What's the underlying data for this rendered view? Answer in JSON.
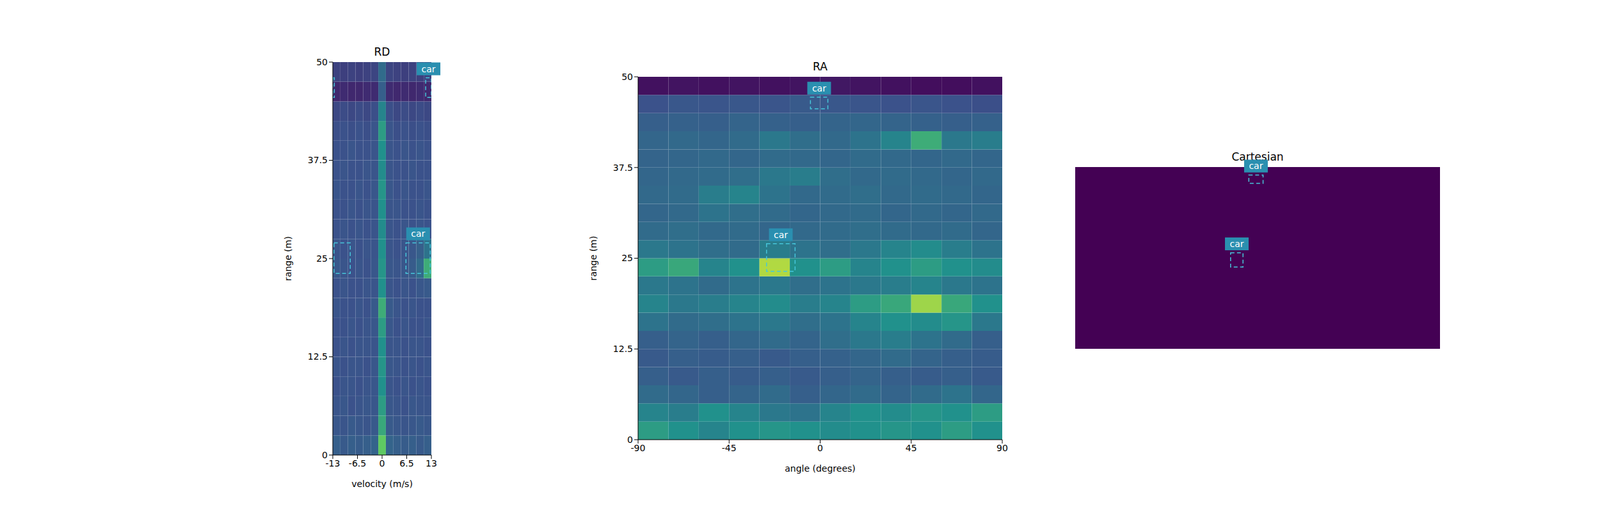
{
  "chart_data": [
    {
      "type": "heatmap",
      "title": "RD",
      "x_label": "velocity (m/s)",
      "y_label": "range (m)",
      "xlim": [
        -13,
        13
      ],
      "xticks": [
        -13,
        -6.5,
        0,
        6.5,
        13
      ],
      "ylim": [
        0,
        50
      ],
      "yticks": [
        0,
        12.5,
        25,
        37.5,
        50
      ],
      "zlim": [
        0,
        1
      ],
      "cells": [
        [
          0.3,
          0.28,
          0.3,
          0.29,
          0.3,
          0.32,
          0.75,
          0.32,
          0.3,
          0.29,
          0.3,
          0.28,
          0.3
        ],
        [
          0.27,
          0.26,
          0.28,
          0.27,
          0.26,
          0.28,
          0.6,
          0.28,
          0.27,
          0.26,
          0.27,
          0.28,
          0.27
        ],
        [
          0.26,
          0.27,
          0.25,
          0.26,
          0.27,
          0.27,
          0.55,
          0.27,
          0.26,
          0.25,
          0.27,
          0.26,
          0.26
        ],
        [
          0.25,
          0.26,
          0.26,
          0.25,
          0.26,
          0.27,
          0.5,
          0.26,
          0.25,
          0.26,
          0.25,
          0.26,
          0.25
        ],
        [
          0.26,
          0.25,
          0.26,
          0.26,
          0.25,
          0.27,
          0.52,
          0.27,
          0.26,
          0.25,
          0.26,
          0.25,
          0.26
        ],
        [
          0.25,
          0.26,
          0.25,
          0.26,
          0.26,
          0.26,
          0.5,
          0.26,
          0.26,
          0.25,
          0.26,
          0.26,
          0.25
        ],
        [
          0.25,
          0.25,
          0.26,
          0.25,
          0.26,
          0.27,
          0.55,
          0.27,
          0.25,
          0.26,
          0.25,
          0.25,
          0.26
        ],
        [
          0.26,
          0.25,
          0.25,
          0.26,
          0.25,
          0.28,
          0.62,
          0.28,
          0.26,
          0.25,
          0.26,
          0.25,
          0.25
        ],
        [
          0.25,
          0.26,
          0.25,
          0.25,
          0.26,
          0.26,
          0.5,
          0.26,
          0.25,
          0.26,
          0.25,
          0.27,
          0.28
        ],
        [
          0.27,
          0.26,
          0.25,
          0.26,
          0.25,
          0.27,
          0.52,
          0.27,
          0.26,
          0.27,
          0.29,
          0.35,
          0.62
        ],
        [
          0.26,
          0.25,
          0.26,
          0.25,
          0.26,
          0.26,
          0.5,
          0.26,
          0.25,
          0.26,
          0.27,
          0.3,
          0.38
        ],
        [
          0.25,
          0.26,
          0.25,
          0.26,
          0.25,
          0.26,
          0.48,
          0.26,
          0.25,
          0.26,
          0.25,
          0.26,
          0.25
        ],
        [
          0.25,
          0.25,
          0.26,
          0.25,
          0.26,
          0.26,
          0.5,
          0.26,
          0.26,
          0.25,
          0.25,
          0.26,
          0.25
        ],
        [
          0.26,
          0.25,
          0.25,
          0.26,
          0.25,
          0.27,
          0.52,
          0.27,
          0.25,
          0.26,
          0.25,
          0.25,
          0.26
        ],
        [
          0.25,
          0.26,
          0.25,
          0.25,
          0.26,
          0.26,
          0.48,
          0.26,
          0.25,
          0.25,
          0.26,
          0.25,
          0.25
        ],
        [
          0.25,
          0.25,
          0.26,
          0.25,
          0.25,
          0.26,
          0.5,
          0.26,
          0.25,
          0.26,
          0.25,
          0.26,
          0.25
        ],
        [
          0.24,
          0.25,
          0.24,
          0.25,
          0.24,
          0.26,
          0.55,
          0.26,
          0.24,
          0.25,
          0.24,
          0.25,
          0.24
        ],
        [
          0.22,
          0.23,
          0.22,
          0.23,
          0.22,
          0.24,
          0.45,
          0.24,
          0.22,
          0.23,
          0.22,
          0.23,
          0.22
        ],
        [
          0.12,
          0.13,
          0.12,
          0.12,
          0.13,
          0.13,
          0.3,
          0.13,
          0.12,
          0.13,
          0.12,
          0.13,
          0.12
        ],
        [
          0.2,
          0.19,
          0.2,
          0.19,
          0.2,
          0.21,
          0.35,
          0.21,
          0.2,
          0.19,
          0.2,
          0.19,
          0.2
        ]
      ],
      "boxes": [
        {
          "x": [
            -12.7,
            -8.4
          ],
          "y": [
            23.1,
            27.0
          ]
        },
        {
          "x": [
            6.3,
            12.7
          ],
          "y": [
            23.1,
            27.0
          ],
          "label": "car"
        },
        {
          "x": [
            11.5,
            13
          ],
          "y": [
            45.5,
            48
          ],
          "label": "car"
        },
        {
          "x": [
            -13,
            -12.6
          ],
          "y": [
            45.5,
            48
          ]
        }
      ]
    },
    {
      "type": "heatmap",
      "title": "RA",
      "x_label": "angle (degrees)",
      "y_label": "range (m)",
      "xlim": [
        -90,
        90
      ],
      "xticks": [
        -90,
        -45,
        0,
        45,
        90
      ],
      "ylim": [
        0,
        50
      ],
      "yticks": [
        0,
        12.5,
        25,
        37.5,
        50
      ],
      "zlim": [
        0,
        1
      ],
      "cells": [
        [
          0.55,
          0.5,
          0.45,
          0.5,
          0.52,
          0.5,
          0.48,
          0.5,
          0.52,
          0.5,
          0.55,
          0.5
        ],
        [
          0.45,
          0.42,
          0.5,
          0.45,
          0.4,
          0.38,
          0.45,
          0.5,
          0.48,
          0.52,
          0.5,
          0.55
        ],
        [
          0.35,
          0.33,
          0.3,
          0.32,
          0.35,
          0.3,
          0.33,
          0.35,
          0.32,
          0.35,
          0.38,
          0.33
        ],
        [
          0.3,
          0.28,
          0.3,
          0.29,
          0.3,
          0.28,
          0.3,
          0.32,
          0.3,
          0.29,
          0.3,
          0.28
        ],
        [
          0.28,
          0.3,
          0.29,
          0.3,
          0.28,
          0.3,
          0.31,
          0.33,
          0.35,
          0.32,
          0.3,
          0.29
        ],
        [
          0.3,
          0.32,
          0.3,
          0.33,
          0.35,
          0.32,
          0.36,
          0.4,
          0.42,
          0.38,
          0.35,
          0.3
        ],
        [
          0.38,
          0.35,
          0.36,
          0.38,
          0.4,
          0.36,
          0.38,
          0.45,
          0.5,
          0.48,
          0.52,
          0.4
        ],
        [
          0.45,
          0.4,
          0.42,
          0.45,
          0.48,
          0.42,
          0.45,
          0.55,
          0.6,
          0.85,
          0.6,
          0.5
        ],
        [
          0.4,
          0.38,
          0.35,
          0.38,
          0.4,
          0.36,
          0.38,
          0.4,
          0.42,
          0.45,
          0.4,
          0.38
        ],
        [
          0.55,
          0.6,
          0.45,
          0.5,
          0.88,
          0.5,
          0.55,
          0.45,
          0.5,
          0.55,
          0.5,
          0.48
        ],
        [
          0.4,
          0.38,
          0.36,
          0.35,
          0.42,
          0.38,
          0.36,
          0.4,
          0.45,
          0.48,
          0.42,
          0.38
        ],
        [
          0.35,
          0.36,
          0.34,
          0.35,
          0.33,
          0.34,
          0.35,
          0.36,
          0.35,
          0.34,
          0.35,
          0.33
        ],
        [
          0.33,
          0.34,
          0.38,
          0.36,
          0.35,
          0.33,
          0.34,
          0.35,
          0.33,
          0.34,
          0.33,
          0.34
        ],
        [
          0.34,
          0.35,
          0.42,
          0.45,
          0.38,
          0.34,
          0.35,
          0.36,
          0.34,
          0.35,
          0.34,
          0.33
        ],
        [
          0.33,
          0.34,
          0.35,
          0.36,
          0.4,
          0.42,
          0.36,
          0.34,
          0.35,
          0.34,
          0.33,
          0.34
        ],
        [
          0.32,
          0.33,
          0.34,
          0.33,
          0.35,
          0.34,
          0.33,
          0.35,
          0.34,
          0.33,
          0.34,
          0.33
        ],
        [
          0.33,
          0.34,
          0.33,
          0.35,
          0.4,
          0.36,
          0.34,
          0.38,
          0.45,
          0.62,
          0.4,
          0.42
        ],
        [
          0.3,
          0.31,
          0.3,
          0.32,
          0.31,
          0.3,
          0.32,
          0.33,
          0.32,
          0.31,
          0.3,
          0.31
        ],
        [
          0.25,
          0.27,
          0.26,
          0.27,
          0.26,
          0.28,
          0.27,
          0.26,
          0.25,
          0.26,
          0.25,
          0.24
        ],
        [
          0.05,
          0.06,
          0.05,
          0.06,
          0.05,
          0.06,
          0.07,
          0.06,
          0.05,
          0.04,
          0.04,
          0.05
        ]
      ],
      "boxes": [
        {
          "x": [
            -26.5,
            -12.4
          ],
          "y": [
            23.2,
            27.0
          ],
          "label": "car"
        },
        {
          "x": [
            -4.8,
            3.8
          ],
          "y": [
            45.6,
            47.2
          ],
          "label": "car"
        }
      ]
    },
    {
      "type": "heatmap",
      "title": "Cartesian",
      "tick_labels": false,
      "xlim": [
        -50,
        50
      ],
      "ylim": [
        0,
        50
      ],
      "zlim": [
        0,
        1
      ],
      "cells": [
        [
          0
        ]
      ],
      "boxes": [
        {
          "x": [
            -7.4,
            -4.0
          ],
          "y": [
            22.5,
            26.4
          ],
          "label": "car"
        },
        {
          "x": [
            -2.4,
            1.5
          ],
          "y": [
            45.5,
            47.8
          ],
          "label": "car"
        }
      ]
    }
  ]
}
